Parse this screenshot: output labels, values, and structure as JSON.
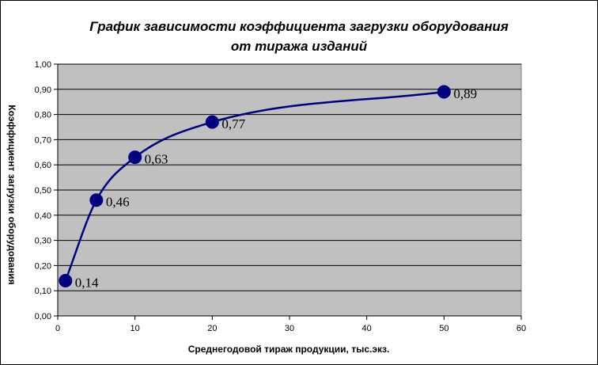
{
  "chart_data": {
    "type": "line",
    "title": "График зависимости коэффициента загрузки оборудования от тиража изданий",
    "title_lines": [
      "График зависимости коэффициента загрузки оборудования",
      "от тиража изданий"
    ],
    "xlabel": "Среднегодовой тираж продукции, тыс.экз.",
    "ylabel": "Коэффициент загрузки оборудования",
    "xlim": [
      0,
      60
    ],
    "ylim": [
      0,
      1
    ],
    "x_ticks": [
      "0",
      "10",
      "20",
      "30",
      "40",
      "50",
      "60"
    ],
    "y_ticks": [
      "0,00",
      "0,10",
      "0,20",
      "0,30",
      "0,40",
      "0,50",
      "0,60",
      "0,70",
      "0,80",
      "0,90",
      "1,00"
    ],
    "grid": true,
    "legend": false,
    "series": [
      {
        "x": [
          1,
          5,
          10,
          20,
          50
        ],
        "y": [
          0.14,
          0.46,
          0.63,
          0.77,
          0.89
        ],
        "labels": [
          "0,14",
          "0,46",
          "0,63",
          "0,77",
          "0,89"
        ]
      }
    ],
    "colors": {
      "title": "#0000ff",
      "plot_area": "#c0c0c0",
      "line": "#000080",
      "marker": "#000080",
      "grid": "#000000"
    }
  }
}
